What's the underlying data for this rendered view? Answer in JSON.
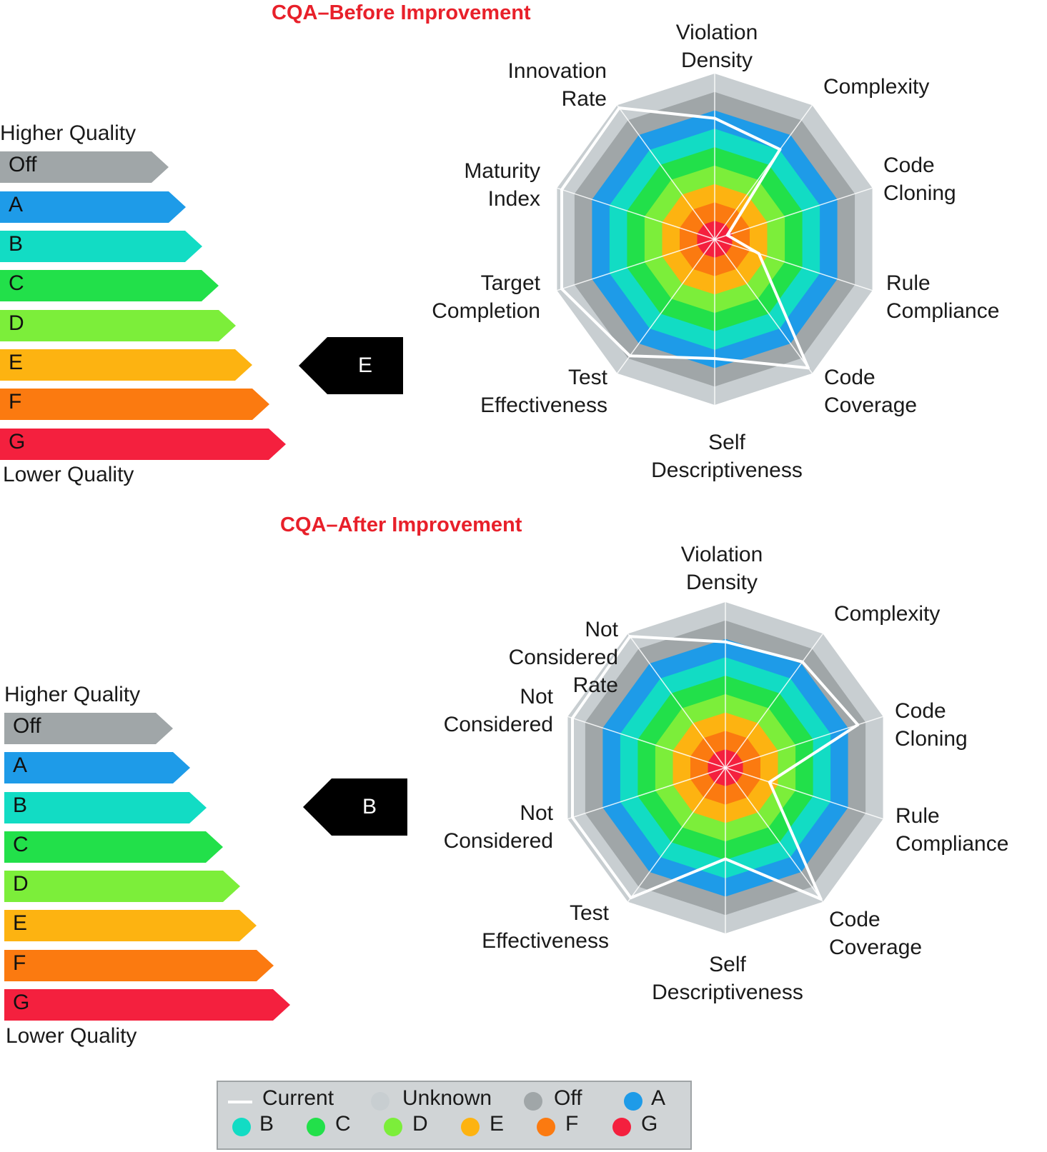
{
  "scale": [
    {
      "grade": "Off",
      "color": "#a0a6a8"
    },
    {
      "grade": "A",
      "color": "#1e9be8"
    },
    {
      "grade": "B",
      "color": "#12dcc4"
    },
    {
      "grade": "C",
      "color": "#22e04a"
    },
    {
      "grade": "D",
      "color": "#7cee3a"
    },
    {
      "grade": "E",
      "color": "#fdb311"
    },
    {
      "grade": "F",
      "color": "#fb7a10"
    },
    {
      "grade": "G",
      "color": "#f4203e"
    }
  ],
  "legend": [
    {
      "label": "Current",
      "kind": "line",
      "color": "#ffffff"
    },
    {
      "label": "Unknown",
      "kind": "dot",
      "color": "#c8ced1"
    },
    {
      "label": "Off",
      "kind": "dot",
      "color": "#a0a6a8"
    },
    {
      "label": "A",
      "kind": "dot",
      "color": "#1e9be8"
    },
    {
      "label": "B",
      "kind": "dot",
      "color": "#12dcc4"
    },
    {
      "label": "C",
      "kind": "dot",
      "color": "#22e04a"
    },
    {
      "label": "D",
      "kind": "dot",
      "color": "#7cee3a"
    },
    {
      "label": "E",
      "kind": "dot",
      "color": "#fdb311"
    },
    {
      "label": "F",
      "kind": "dot",
      "color": "#fb7a10"
    },
    {
      "label": "G",
      "kind": "dot",
      "color": "#f4203e"
    }
  ],
  "chart_data": [
    {
      "type": "radar",
      "title": "CQA–Before Improvement",
      "higher_label": "Higher Quality",
      "lower_label": "Lower Quality",
      "overall_grade": "E",
      "rings": [
        "G",
        "F",
        "E",
        "D",
        "C",
        "B",
        "A",
        "Off",
        "Unknown"
      ],
      "axes": [
        "Violation Density",
        "Complexity",
        "Code Cloning",
        "Rule Compliance",
        "Code Coverage",
        "Self Descriptiveness",
        "Test Effectiveness",
        "Target Completion",
        "Maturity Index",
        "Innovation Rate"
      ],
      "series": [
        {
          "name": "Current",
          "values": [
            0.73,
            0.67,
            0.08,
            0.28,
            0.96,
            0.72,
            0.87,
            0.97,
            0.97,
            0.98
          ]
        }
      ]
    },
    {
      "type": "radar",
      "title": "CQA–After Improvement",
      "higher_label": "Higher Quality",
      "lower_label": "Lower Quality",
      "overall_grade": "B",
      "rings": [
        "G",
        "F",
        "E",
        "D",
        "C",
        "B",
        "A",
        "Off",
        "Unknown"
      ],
      "axes": [
        "Violation Density",
        "Complexity",
        "Code Cloning",
        "Rule Compliance",
        "Code Coverage",
        "Self Descriptiveness",
        "Test Effectiveness",
        "Not Considered",
        "Not Considered",
        "Not Considered Rate"
      ],
      "series": [
        {
          "name": "Current",
          "values": [
            0.76,
            0.79,
            0.84,
            0.28,
            0.98,
            0.55,
            0.97,
            0.97,
            0.97,
            0.98
          ]
        }
      ]
    }
  ]
}
